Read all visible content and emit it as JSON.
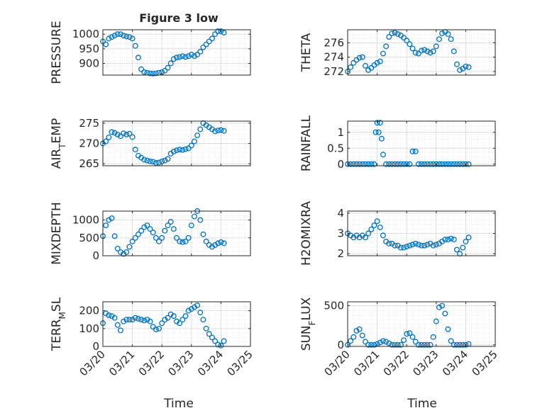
{
  "title": "Figure 3 low",
  "xlabel": "Time",
  "marker_color": "#0072bd",
  "xticks": [
    "03/20",
    "03/21",
    "03/22",
    "03/23",
    "03/24",
    "03/25"
  ],
  "chart_data": [
    {
      "type": "scatter",
      "name": "PRESSURE",
      "ylabel": "PRESSURE",
      "ylabel_main": "PRESSURE",
      "ylabel_sub": "",
      "ylabel_tail": "",
      "ylim": [
        860,
        1015
      ],
      "yticks": [
        900,
        950,
        1000
      ],
      "grid": true,
      "x": [
        0.0,
        0.1,
        0.2,
        0.3,
        0.4,
        0.5,
        0.6,
        0.7,
        0.8,
        0.9,
        1.0,
        1.1,
        1.2,
        1.3,
        1.4,
        1.5,
        1.6,
        1.7,
        1.8,
        1.9,
        2.0,
        2.1,
        2.2,
        2.3,
        2.4,
        2.5,
        2.6,
        2.7,
        2.8,
        2.9,
        3.0,
        3.1,
        3.2,
        3.3,
        3.4,
        3.5,
        3.6,
        3.7,
        3.8,
        3.9,
        4.0,
        4.1
      ],
      "y": [
        975,
        965,
        985,
        990,
        995,
        1000,
        1000,
        995,
        992,
        990,
        985,
        960,
        920,
        880,
        870,
        868,
        866,
        865,
        866,
        868,
        870,
        875,
        885,
        900,
        915,
        920,
        922,
        925,
        922,
        925,
        930,
        925,
        930,
        940,
        955,
        965,
        975,
        985,
        1000,
        1010,
        1010,
        1005
      ]
    },
    {
      "type": "scatter",
      "name": "THETA",
      "ylabel": "THETA",
      "ylabel_main": "THETA",
      "ylabel_sub": "",
      "ylabel_tail": "",
      "ylim": [
        271.5,
        277.8
      ],
      "yticks": [
        272,
        274,
        276
      ],
      "grid": true,
      "x": [
        0.0,
        0.1,
        0.2,
        0.3,
        0.4,
        0.5,
        0.6,
        0.7,
        0.8,
        0.9,
        1.0,
        1.1,
        1.2,
        1.3,
        1.4,
        1.5,
        1.6,
        1.7,
        1.8,
        1.9,
        2.0,
        2.1,
        2.2,
        2.3,
        2.4,
        2.5,
        2.6,
        2.7,
        2.8,
        2.9,
        3.0,
        3.1,
        3.2,
        3.3,
        3.4,
        3.5,
        3.6,
        3.7,
        3.8,
        3.9,
        4.0,
        4.1
      ],
      "y": [
        272,
        272.6,
        273.2,
        273.6,
        273.9,
        274.0,
        272.8,
        272.2,
        272.5,
        272.9,
        273.2,
        273.4,
        274.5,
        275.5,
        276.8,
        277.3,
        277.4,
        277.2,
        277.0,
        276.7,
        276.3,
        275.8,
        275.2,
        274.6,
        274.5,
        274.9,
        275.0,
        274.8,
        274.6,
        274.8,
        275.5,
        276.5,
        277.3,
        277.5,
        277.2,
        276.5,
        274.8,
        273.0,
        272.2,
        272.4,
        272.7,
        272.6
      ]
    },
    {
      "type": "scatter",
      "name": "AIR_TEMP",
      "ylabel": "AIR_TEMP",
      "ylabel_main": "AIR",
      "ylabel_sub": "T",
      "ylabel_tail": "EMP",
      "ylim": [
        264.5,
        275.5
      ],
      "yticks": [
        265,
        270,
        275
      ],
      "grid": true,
      "x": [
        0.0,
        0.1,
        0.2,
        0.3,
        0.4,
        0.5,
        0.6,
        0.7,
        0.8,
        0.9,
        1.0,
        1.1,
        1.2,
        1.3,
        1.4,
        1.5,
        1.6,
        1.7,
        1.8,
        1.9,
        2.0,
        2.1,
        2.2,
        2.3,
        2.4,
        2.5,
        2.6,
        2.7,
        2.8,
        2.9,
        3.0,
        3.1,
        3.2,
        3.3,
        3.4,
        3.5,
        3.6,
        3.7,
        3.8,
        3.9,
        4.0,
        4.1
      ],
      "y": [
        270,
        270.5,
        271.5,
        272.8,
        272.6,
        272.2,
        271.8,
        272.5,
        272.2,
        272.4,
        271.6,
        268.5,
        267.0,
        266.5,
        266.0,
        265.8,
        265.6,
        265.5,
        265.2,
        265.3,
        265.6,
        265.8,
        266.2,
        267.5,
        268.0,
        268.3,
        268.5,
        268.4,
        268.6,
        268.8,
        269.5,
        270.5,
        272.0,
        273.5,
        275.0,
        274.5,
        274.0,
        273.5,
        273.0,
        273.2,
        273.3,
        273.1
      ]
    },
    {
      "type": "scatter",
      "name": "RAINFALL",
      "ylabel": "RAINFALL",
      "ylabel_main": "RAINFALL",
      "ylabel_sub": "",
      "ylabel_tail": "",
      "ylim": [
        -0.05,
        1.35
      ],
      "yticks": [
        0,
        0.5,
        1
      ],
      "grid": true,
      "x": [
        0.0,
        0.1,
        0.2,
        0.3,
        0.4,
        0.5,
        0.6,
        0.7,
        0.8,
        0.9,
        0.95,
        1.0,
        1.05,
        1.1,
        1.15,
        1.2,
        1.3,
        1.4,
        1.5,
        1.6,
        1.7,
        1.8,
        1.9,
        2.0,
        2.1,
        2.2,
        2.3,
        2.4,
        2.5,
        2.6,
        2.7,
        2.8,
        2.9,
        3.0,
        3.1,
        3.2,
        3.3,
        3.4,
        3.5,
        3.6,
        3.7,
        3.8,
        3.9,
        4.0,
        4.1
      ],
      "y": [
        0,
        0,
        0,
        0,
        0,
        0,
        0,
        0,
        0,
        0,
        1.0,
        1.3,
        1.0,
        1.3,
        0.8,
        0.3,
        0,
        0,
        0,
        0,
        0,
        0,
        0,
        0,
        0,
        0.4,
        0.4,
        0,
        0,
        0,
        0,
        0,
        0,
        0,
        0,
        0,
        0,
        0,
        0,
        0,
        0,
        0,
        0,
        0,
        0
      ]
    },
    {
      "type": "scatter",
      "name": "MIXDEPTH",
      "ylabel": "MIXDEPTH",
      "ylabel_main": "MIXDEPTH",
      "ylabel_sub": "",
      "ylabel_tail": "",
      "ylim": [
        0,
        1250
      ],
      "yticks": [
        0,
        500,
        1000
      ],
      "grid": true,
      "x": [
        0.0,
        0.1,
        0.2,
        0.3,
        0.4,
        0.5,
        0.6,
        0.7,
        0.8,
        0.9,
        1.0,
        1.1,
        1.2,
        1.3,
        1.4,
        1.5,
        1.6,
        1.7,
        1.8,
        1.9,
        2.0,
        2.1,
        2.2,
        2.3,
        2.4,
        2.5,
        2.6,
        2.7,
        2.8,
        2.9,
        3.0,
        3.1,
        3.2,
        3.3,
        3.4,
        3.5,
        3.6,
        3.7,
        3.8,
        3.9,
        4.0,
        4.1
      ],
      "y": [
        550,
        850,
        1000,
        1050,
        550,
        200,
        100,
        50,
        100,
        250,
        400,
        500,
        600,
        700,
        800,
        850,
        750,
        650,
        500,
        400,
        500,
        700,
        850,
        950,
        750,
        500,
        400,
        380,
        400,
        500,
        850,
        1100,
        1250,
        1000,
        600,
        400,
        300,
        250,
        300,
        350,
        380,
        350
      ]
    },
    {
      "type": "scatter",
      "name": "H2OMIXRA",
      "ylabel": "H2OMIXRA",
      "ylabel_main": "H2OMIXRA",
      "ylabel_sub": "",
      "ylabel_tail": "",
      "ylim": [
        1.9,
        4.1
      ],
      "yticks": [
        2,
        3,
        4
      ],
      "grid": true,
      "x": [
        0.0,
        0.1,
        0.2,
        0.3,
        0.4,
        0.5,
        0.6,
        0.7,
        0.8,
        0.9,
        1.0,
        1.1,
        1.2,
        1.3,
        1.4,
        1.5,
        1.6,
        1.7,
        1.8,
        1.9,
        2.0,
        2.1,
        2.2,
        2.3,
        2.4,
        2.5,
        2.6,
        2.7,
        2.8,
        2.9,
        3.0,
        3.1,
        3.2,
        3.3,
        3.4,
        3.5,
        3.6,
        3.7,
        3.8,
        3.9,
        4.0,
        4.1
      ],
      "y": [
        3.0,
        2.9,
        2.8,
        2.9,
        2.8,
        2.9,
        2.8,
        3.0,
        3.2,
        3.4,
        3.6,
        3.3,
        2.9,
        2.6,
        2.5,
        2.5,
        2.4,
        2.4,
        2.3,
        2.3,
        2.35,
        2.4,
        2.45,
        2.5,
        2.45,
        2.4,
        2.4,
        2.45,
        2.5,
        2.4,
        2.45,
        2.5,
        2.6,
        2.7,
        2.7,
        2.75,
        2.7,
        2.2,
        2.0,
        2.3,
        2.6,
        2.8
      ]
    },
    {
      "type": "scatter",
      "name": "TERR_MSL",
      "ylabel": "TERR_MSL",
      "ylabel_main": "TERR",
      "ylabel_sub": "M",
      "ylabel_tail": "SL",
      "ylim": [
        0,
        250
      ],
      "yticks": [
        0,
        100,
        200
      ],
      "grid": true,
      "x": [
        0.0,
        0.1,
        0.2,
        0.3,
        0.4,
        0.5,
        0.6,
        0.7,
        0.8,
        0.9,
        1.0,
        1.1,
        1.2,
        1.3,
        1.4,
        1.5,
        1.6,
        1.7,
        1.8,
        1.9,
        2.0,
        2.1,
        2.2,
        2.3,
        2.4,
        2.5,
        2.6,
        2.7,
        2.8,
        2.9,
        3.0,
        3.1,
        3.2,
        3.3,
        3.4,
        3.5,
        3.6,
        3.7,
        3.8,
        3.9,
        4.0,
        4.1
      ],
      "y": [
        130,
        185,
        175,
        170,
        160,
        120,
        90,
        140,
        150,
        150,
        150,
        160,
        155,
        150,
        145,
        150,
        140,
        110,
        95,
        100,
        130,
        150,
        160,
        180,
        170,
        140,
        130,
        150,
        170,
        200,
        210,
        220,
        230,
        190,
        150,
        100,
        70,
        50,
        30,
        10,
        5,
        30
      ]
    },
    {
      "type": "scatter",
      "name": "SUN_FLUX",
      "ylabel": "SUN_FLUX",
      "ylabel_main": "SUN",
      "ylabel_sub": "F",
      "ylabel_tail": "LUX",
      "ylim": [
        -20,
        550
      ],
      "yticks": [
        0,
        500
      ],
      "grid": true,
      "x": [
        0.0,
        0.1,
        0.2,
        0.3,
        0.4,
        0.5,
        0.6,
        0.7,
        0.8,
        0.9,
        1.0,
        1.1,
        1.2,
        1.3,
        1.4,
        1.5,
        1.6,
        1.7,
        1.8,
        1.9,
        2.0,
        2.1,
        2.2,
        2.3,
        2.4,
        2.5,
        2.6,
        2.7,
        2.8,
        2.9,
        3.0,
        3.1,
        3.2,
        3.3,
        3.4,
        3.5,
        3.6,
        3.7,
        3.8,
        3.9,
        4.0,
        4.1
      ],
      "y": [
        0,
        50,
        100,
        180,
        200,
        120,
        40,
        0,
        0,
        0,
        10,
        30,
        50,
        40,
        20,
        0,
        0,
        0,
        0,
        60,
        140,
        150,
        100,
        40,
        0,
        0,
        0,
        0,
        0,
        100,
        300,
        480,
        500,
        400,
        200,
        50,
        0,
        0,
        0,
        0,
        0,
        10
      ]
    }
  ]
}
